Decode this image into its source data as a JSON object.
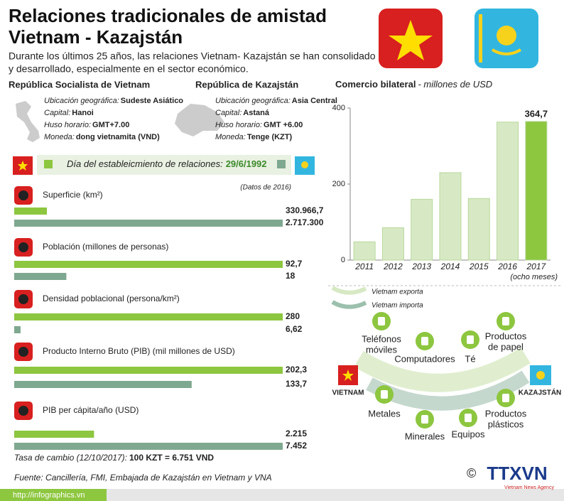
{
  "header": {
    "title_lines": [
      "Relaciones tradicionales de amistad",
      "Vietnam - Kazajstán"
    ],
    "intro_lines": [
      "Durante los últimos 25 años, las relaciones Vietnam- Kazajstán se han consolidado",
      "y desarrollado, especialmente en el sector económico."
    ]
  },
  "countries": [
    {
      "name": "República Socialista de Vietnam",
      "fields": [
        {
          "label": "Ubicación geográfica:",
          "value": "Sudeste Asiático"
        },
        {
          "label": "Capital:",
          "value": "Hanoi"
        },
        {
          "label": "Huso horario:",
          "value": "GMT+7.00"
        },
        {
          "label": "Moneda:",
          "value": "dong vietnamita (VND)"
        }
      ]
    },
    {
      "name": "República de Kazajstán",
      "fields": [
        {
          "label": "Ubicación geográfica:",
          "value": "Asia Central"
        },
        {
          "label": "Capital:",
          "value": "Astaná"
        },
        {
          "label": "Huso horario:",
          "value": "GMT +6.00"
        },
        {
          "label": "Moneda:",
          "value": "Tenge (KZT)"
        }
      ]
    }
  ],
  "relations": {
    "label": "Día del estableicmiento de relaciones:",
    "date": "29/6/1992",
    "note": "(Datos de 2016)"
  },
  "comparison_colors": [
    "#8dc63f",
    "#7fa890"
  ],
  "comparisons": [
    {
      "label": "Superficie (km²)",
      "values": [
        330966.7,
        2717300
      ],
      "value_labels": [
        "330.966,7",
        "2.717.300"
      ]
    },
    {
      "label": "Población (millones de personas)",
      "values": [
        92.7,
        18
      ],
      "value_labels": [
        "92,7",
        "18"
      ]
    },
    {
      "label": "Densidad poblacional (persona/km²)",
      "values": [
        280,
        6.62
      ],
      "value_labels": [
        "280",
        "6,62"
      ]
    },
    {
      "label": "Producto Interno Bruto (PIB) (mil millones de USD)",
      "values": [
        202.3,
        133.7
      ],
      "value_labels": [
        "202,3",
        "133,7"
      ]
    },
    {
      "label": "PIB per cápita/año (USD)",
      "values": [
        2215,
        7452
      ],
      "value_labels": [
        "2.215",
        "7.452"
      ]
    }
  ],
  "exchange_rate": {
    "label": "Tasa de cambio (12/10/2017):",
    "value": "100 KZT = 6.751 VND"
  },
  "chart_data": {
    "type": "bar",
    "title": "Comercio bilateral",
    "subtitle": "- millones de USD",
    "categories": [
      "2011",
      "2012",
      "2013",
      "2014",
      "2015",
      "2016",
      "2017"
    ],
    "values": [
      48,
      85,
      160,
      230,
      162,
      363,
      364.7
    ],
    "value_labels": [
      null,
      null,
      null,
      null,
      null,
      null,
      "364,7"
    ],
    "colors": [
      "#d7e9c4",
      "#d7e9c4",
      "#d7e9c4",
      "#d7e9c4",
      "#d7e9c4",
      "#d7e9c4",
      "#8dc63f"
    ],
    "annotation": "(ocho meses)",
    "ylim": [
      0,
      400
    ],
    "yticks": [
      0,
      200,
      400
    ]
  },
  "trade": {
    "legend": [
      "Vietnam exporta",
      "Vietnam importa"
    ],
    "countries": [
      "VIETNAM",
      "KAZAJSTÁN"
    ],
    "exports": [
      {
        "lines": [
          "Teléfonos",
          "móviles"
        ]
      },
      {
        "lines": [
          "Computadores"
        ]
      },
      {
        "lines": [
          "Té"
        ]
      },
      {
        "lines": [
          "Productos",
          "de papel"
        ]
      }
    ],
    "imports": [
      {
        "lines": [
          "Metales"
        ]
      },
      {
        "lines": [
          "Minerales"
        ]
      },
      {
        "lines": [
          "Equipos"
        ]
      },
      {
        "lines": [
          "Productos",
          "plásticos"
        ]
      }
    ]
  },
  "footer": {
    "source": "Fuente: Cancillería, FMI, Embajada de Kazajstán en Vietnam y VNA",
    "url": "http://infographics.vn",
    "copyright": "©",
    "logo": "TTXVN",
    "logo_sub": "Vietnam News Agency"
  }
}
